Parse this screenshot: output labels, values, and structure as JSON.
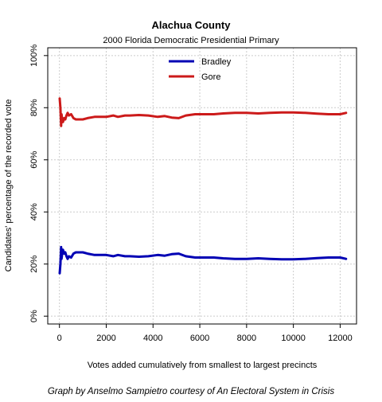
{
  "chart_data": {
    "type": "line",
    "title": "Alachua County",
    "subtitle": "2000 Florida Democratic Presidential Primary",
    "xlabel": "Votes added cumulatively from smallest to largest precincts",
    "ylabel": "Candidates' percentage of the recorded vote",
    "xlim": [
      -500,
      12700
    ],
    "ylim": [
      -3,
      103
    ],
    "x_ticks": [
      0,
      2000,
      4000,
      6000,
      8000,
      10000,
      12000
    ],
    "x_tick_labels": [
      "0",
      "2000",
      "4000",
      "6000",
      "8000",
      "10000",
      "12000"
    ],
    "y_ticks": [
      0,
      20,
      40,
      60,
      80,
      100
    ],
    "y_tick_labels": [
      "0%",
      "20%",
      "40%",
      "60%",
      "80%",
      "100%"
    ],
    "grid": true,
    "legend_position": "top-center",
    "series": [
      {
        "name": "Bradley",
        "color": "#0000b4",
        "x": [
          10,
          40,
          70,
          90,
          120,
          150,
          200,
          250,
          300,
          350,
          400,
          500,
          600,
          700,
          800,
          900,
          1000,
          1200,
          1500,
          1800,
          2000,
          2300,
          2500,
          2800,
          3000,
          3400,
          3800,
          4200,
          4500,
          4800,
          5100,
          5400,
          5800,
          6200,
          6600,
          7000,
          7500,
          8000,
          8500,
          9000,
          9500,
          10000,
          10500,
          11000,
          11500,
          12000,
          12250
        ],
        "values": [
          16.5,
          20,
          26.5,
          22,
          24,
          25.5,
          24,
          24.5,
          23,
          22,
          23,
          22.5,
          24,
          24.5,
          24.5,
          24.5,
          24.5,
          24,
          23.5,
          23.5,
          23.5,
          23,
          23.5,
          23,
          23,
          22.8,
          23,
          23.5,
          23.2,
          23.8,
          24,
          23,
          22.5,
          22.5,
          22.5,
          22.2,
          22,
          22,
          22.2,
          22,
          21.8,
          21.8,
          22,
          22.3,
          22.5,
          22.5,
          22
        ]
      },
      {
        "name": "Gore",
        "color": "#cc1a1a",
        "x": [
          10,
          40,
          70,
          90,
          120,
          150,
          200,
          250,
          300,
          350,
          400,
          500,
          600,
          700,
          800,
          900,
          1000,
          1200,
          1500,
          1800,
          2000,
          2300,
          2500,
          2800,
          3000,
          3400,
          3800,
          4200,
          4500,
          4800,
          5100,
          5400,
          5800,
          6200,
          6600,
          7000,
          7500,
          8000,
          8500,
          9000,
          9500,
          10000,
          10500,
          11000,
          11500,
          12000,
          12250
        ],
        "values": [
          83.5,
          80,
          73,
          77.5,
          75.5,
          74.5,
          76,
          75.5,
          77,
          78,
          77,
          77.5,
          76,
          75.5,
          75.5,
          75.5,
          75.5,
          76,
          76.5,
          76.5,
          76.5,
          77,
          76.5,
          77,
          77,
          77.2,
          77,
          76.5,
          76.8,
          76.2,
          76,
          77,
          77.5,
          77.5,
          77.5,
          77.8,
          78,
          78,
          77.8,
          78,
          78.2,
          78.2,
          78,
          77.7,
          77.5,
          77.5,
          78
        ]
      }
    ]
  },
  "credit": "Graph by Anselmo Sampietro courtesy of An Electoral System in Crisis"
}
